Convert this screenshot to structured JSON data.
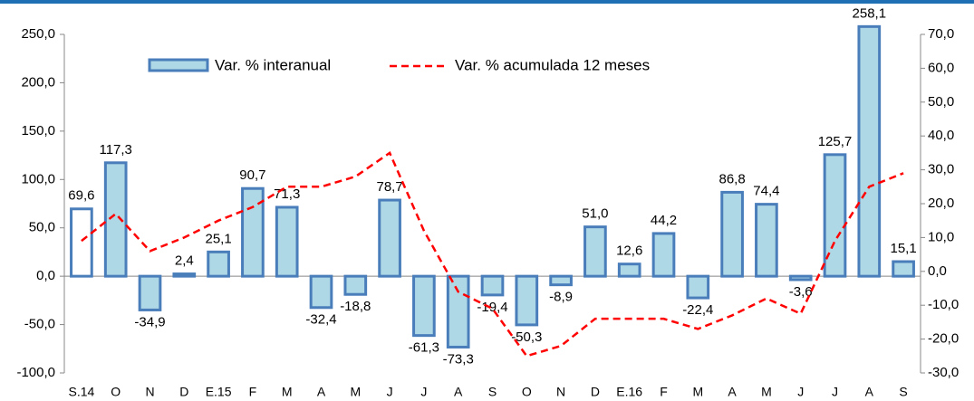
{
  "chart_data": {
    "type": "bar",
    "categories": [
      "S.14",
      "O",
      "N",
      "D",
      "E.15",
      "F",
      "M",
      "A",
      "M",
      "J",
      "J",
      "A",
      "S",
      "O",
      "N",
      "D",
      "E.16",
      "F",
      "M",
      "A",
      "M",
      "J",
      "J",
      "A",
      "S"
    ],
    "series": [
      {
        "name": "Var. % interanual",
        "type": "bar",
        "color": "#aed8e6",
        "stroke": "#4a7ebb",
        "point_colors": [
          "#ffffff",
          "#aed8e6",
          "#aed8e6",
          "#aed8e6",
          "#aed8e6",
          "#aed8e6",
          "#aed8e6",
          "#aed8e6",
          "#aed8e6",
          "#aed8e6",
          "#aed8e6",
          "#aed8e6",
          "#aed8e6",
          "#aed8e6",
          "#aed8e6",
          "#aed8e6",
          "#aed8e6",
          "#aed8e6",
          "#aed8e6",
          "#aed8e6",
          "#aed8e6",
          "#aed8e6",
          "#aed8e6",
          "#aed8e6",
          "#aed8e6"
        ],
        "values": [
          69.6,
          117.3,
          -34.9,
          2.4,
          25.1,
          90.7,
          71.3,
          -32.4,
          -18.8,
          78.7,
          -61.3,
          -73.3,
          -19.4,
          -50.3,
          -8.9,
          51.0,
          12.6,
          44.2,
          -22.4,
          86.8,
          74.4,
          -3.6,
          125.7,
          258.1,
          15.1
        ],
        "value_labels": [
          "69,6",
          "117,3",
          "-34,9",
          "2,4",
          "25,1",
          "90,7",
          "71,3",
          "-32,4",
          "-18,8",
          "78,7",
          "-61,3",
          "-73,3",
          "-19,4",
          "-50,3",
          "-8,9",
          "51,0",
          "12,6",
          "44,2",
          "-22,4",
          "86,8",
          "74,4",
          "-3,6",
          "125,7",
          "258,1",
          "15,1"
        ]
      },
      {
        "name": "Var. % acumulada 12 meses",
        "type": "line",
        "axis": "y2",
        "color": "#ff0000",
        "values": [
          9,
          17,
          6,
          10,
          15,
          19,
          25,
          25,
          28,
          35,
          12,
          -6,
          -11,
          -25,
          -22,
          -14,
          -14,
          -14,
          -17,
          -13,
          -8,
          -12.5,
          9,
          25,
          29
        ]
      }
    ],
    "ylim": [
      -100,
      250
    ],
    "yticks": [
      {
        "value": -100,
        "label": "-100,0"
      },
      {
        "value": -50,
        "label": "-50,0"
      },
      {
        "value": 0,
        "label": "0,0"
      },
      {
        "value": 50,
        "label": "50,0"
      },
      {
        "value": 100,
        "label": "100,0"
      },
      {
        "value": 150,
        "label": "150,0"
      },
      {
        "value": 200,
        "label": "200,0"
      },
      {
        "value": 250,
        "label": "250,0"
      }
    ],
    "y2lim": [
      -30,
      70
    ],
    "y2ticks": [
      {
        "value": -30,
        "label": "-30,0"
      },
      {
        "value": -20,
        "label": "-20,0"
      },
      {
        "value": -10,
        "label": "-10,0"
      },
      {
        "value": 0,
        "label": "0,0"
      },
      {
        "value": 10,
        "label": "10,0"
      },
      {
        "value": 20,
        "label": "20,0"
      },
      {
        "value": 30,
        "label": "30,0"
      },
      {
        "value": 40,
        "label": "40,0"
      },
      {
        "value": 50,
        "label": "50,0"
      },
      {
        "value": 60,
        "label": "60,0"
      },
      {
        "value": 70,
        "label": "70,0"
      }
    ]
  }
}
